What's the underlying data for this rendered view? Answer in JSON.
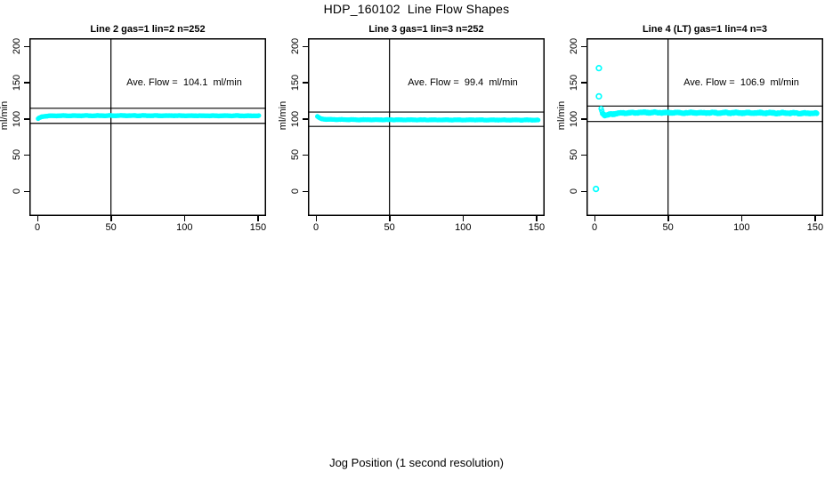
{
  "page": {
    "title": "HDP_160102  Line Flow Shapes",
    "xlabel": "Jog Position (1 second resolution)"
  },
  "colors": {
    "points": "#00FFFF",
    "axis": "#000000",
    "background": "#FFFFFF"
  },
  "chart_data": [
    {
      "type": "scatter",
      "title": "Line 2 gas=1 lin=2 n=252",
      "ylabel": "ml/min",
      "annotation": "Ave. Flow =  104.1  ml/min",
      "ave_flow": 104.1,
      "n": 252,
      "xlim": [
        -6,
        156
      ],
      "ylim": [
        -34,
        211
      ],
      "xticks": [
        0,
        50,
        100,
        150
      ],
      "yticks": [
        0,
        50,
        100,
        150,
        200
      ],
      "vline_x": 50,
      "hlines": [
        114.5,
        93.7
      ],
      "band": {
        "x_start": 0.5,
        "x_end": 151,
        "step": 0.6,
        "control": [
          [
            0.5,
            100.2
          ],
          [
            1.5,
            101.5
          ],
          [
            3,
            102.8
          ],
          [
            6,
            103.8
          ],
          [
            10,
            104.2
          ],
          [
            60,
            104.4
          ],
          [
            150,
            104.1
          ]
        ],
        "jitter": 0.3,
        "r": 1.9
      },
      "outliers": []
    },
    {
      "type": "scatter",
      "title": "Line 3 gas=1 lin=3 n=252",
      "ylabel": "ml/min",
      "annotation": "Ave. Flow =  99.4  ml/min",
      "ave_flow": 99.4,
      "n": 252,
      "xlim": [
        -6,
        156
      ],
      "ylim": [
        -34,
        211
      ],
      "xticks": [
        0,
        50,
        100,
        150
      ],
      "yticks": [
        0,
        50,
        100,
        150,
        200
      ],
      "vline_x": 50,
      "hlines": [
        109.3,
        89.5
      ],
      "band": {
        "x_start": 1,
        "x_end": 151,
        "step": 0.6,
        "control": [
          [
            1,
            103
          ],
          [
            2,
            101.5
          ],
          [
            4,
            99.8
          ],
          [
            8,
            99.0
          ],
          [
            30,
            98.7
          ],
          [
            100,
            98.5
          ],
          [
            150,
            98.3
          ]
        ],
        "jitter": 0.3,
        "r": 1.9
      },
      "outliers": []
    },
    {
      "type": "scatter",
      "title": "Line 4 (LT) gas=1 lin=4 n=3",
      "ylabel": "ml/min",
      "annotation": "Ave. Flow =  106.9  ml/min",
      "ave_flow": 106.9,
      "n": 3,
      "xlim": [
        -6,
        156
      ],
      "ylim": [
        -34,
        211
      ],
      "xticks": [
        0,
        50,
        100,
        150
      ],
      "yticks": [
        0,
        50,
        100,
        150,
        200
      ],
      "vline_x": 50,
      "hlines": [
        117.6,
        96.2
      ],
      "band": {
        "x_start": 4.5,
        "x_end": 151,
        "step": 0.5,
        "control": [
          [
            4.5,
            114.5
          ],
          [
            5.5,
            108
          ],
          [
            7,
            104.8
          ],
          [
            9,
            105.2
          ],
          [
            12,
            106.5
          ],
          [
            18,
            107.8
          ],
          [
            30,
            108.6
          ],
          [
            50,
            108.4
          ],
          [
            80,
            108.3
          ],
          [
            120,
            108.0
          ],
          [
            150,
            107.5
          ]
        ],
        "jitter": 0.8,
        "r": 2.3
      },
      "outliers": [
        [
          1,
          3
        ],
        [
          3,
          170
        ],
        [
          3,
          131
        ]
      ]
    }
  ]
}
